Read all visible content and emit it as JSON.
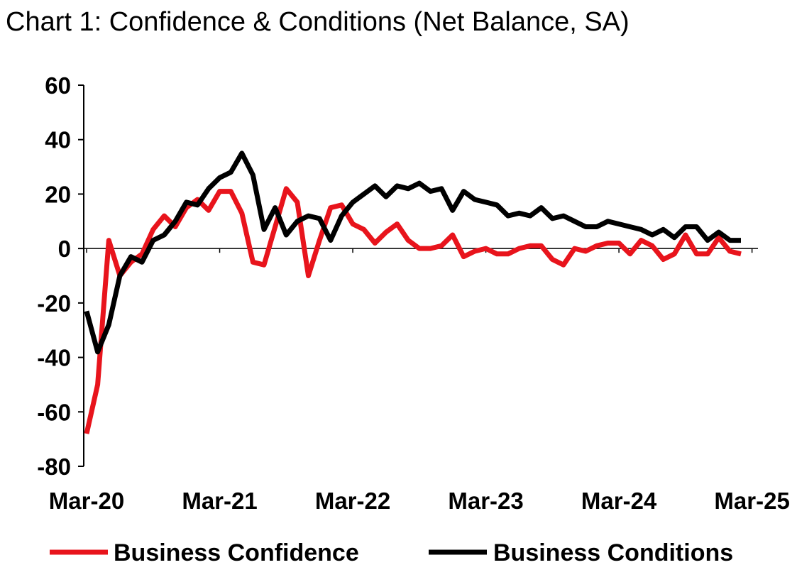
{
  "chart_data": {
    "type": "line",
    "title": "Chart 1: Confidence & Conditions (Net Balance, SA)",
    "xlabel": "",
    "ylabel": "",
    "ylim": [
      -80,
      60
    ],
    "y_ticks": [
      "60",
      "40",
      "20",
      "0",
      "-20",
      "-40",
      "-60",
      "-80"
    ],
    "x_ticks": [
      "Mar-20",
      "Mar-21",
      "Mar-22",
      "Mar-23",
      "Mar-24",
      "Mar-25"
    ],
    "x_start": "Mar-20",
    "x_end": "Mar-25",
    "grid": false,
    "legend": "bottom",
    "series": [
      {
        "name": "Business Confidence",
        "color": "#e8141c",
        "values": [
          -68,
          -50,
          3,
          -10,
          -5,
          -2,
          7,
          12,
          8,
          15,
          18,
          14,
          21,
          21,
          13,
          -5,
          -6,
          8,
          22,
          17,
          -10,
          3,
          15,
          16,
          9,
          7,
          2,
          6,
          9,
          3,
          0,
          0,
          1,
          5,
          -3,
          -1,
          0,
          -2,
          -2,
          0,
          1,
          1,
          -4,
          -6,
          0,
          -1,
          1,
          2,
          2,
          -2,
          3,
          1,
          -4,
          -2,
          5,
          -2,
          -2,
          4,
          -1,
          -2
        ]
      },
      {
        "name": "Business Conditions",
        "color": "#000000",
        "values": [
          -23,
          -38,
          -28,
          -10,
          -3,
          -5,
          3,
          5,
          10,
          17,
          16,
          22,
          26,
          28,
          35,
          27,
          7,
          15,
          5,
          10,
          12,
          11,
          3,
          12,
          17,
          20,
          23,
          19,
          23,
          22,
          24,
          21,
          22,
          14,
          21,
          18,
          17,
          16,
          12,
          13,
          12,
          15,
          11,
          12,
          10,
          8,
          8,
          10,
          9,
          8,
          7,
          5,
          7,
          4,
          8,
          8,
          3,
          6,
          3,
          3
        ]
      }
    ]
  }
}
